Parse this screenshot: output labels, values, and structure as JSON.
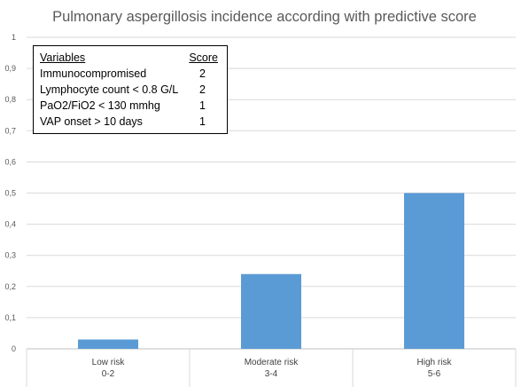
{
  "chart_data": {
    "type": "bar",
    "title": "Pulmonary aspergillosis incidence according with predictive score",
    "xlabel": "",
    "ylabel": "",
    "categories": [
      [
        "Low risk",
        "0-2"
      ],
      [
        "Moderate risk",
        "3-4"
      ],
      [
        "High risk",
        "5-6"
      ]
    ],
    "values": [
      0.03,
      0.24,
      0.5
    ],
    "ylim": [
      0,
      1
    ],
    "yticks": [
      "0",
      "0,1",
      "0,2",
      "0,3",
      "0,4",
      "0,5",
      "0,6",
      "0,7",
      "0,8",
      "0,9",
      "1"
    ],
    "grid": true,
    "bar_color": "#5b9bd5",
    "gridline_color": "#d9d9d9"
  },
  "score_table": {
    "header": {
      "variable": "Variables",
      "score": "Score"
    },
    "rows": [
      {
        "variable": "Immunocompromised",
        "score": "2"
      },
      {
        "variable": "Lymphocyte count < 0.8 G/L",
        "score": "2"
      },
      {
        "variable": "PaO2/FiO2 < 130 mmhg",
        "score": "1"
      },
      {
        "variable": "VAP onset > 10 days",
        "score": "1"
      }
    ]
  }
}
